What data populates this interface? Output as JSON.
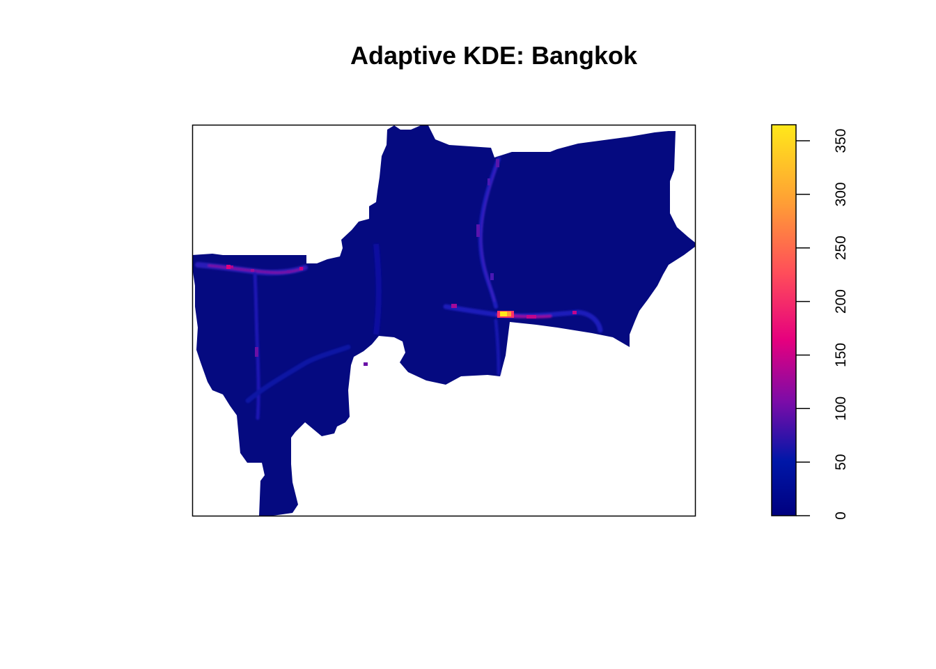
{
  "chart_data": {
    "type": "heatmap",
    "title": "Adaptive KDE: Bangkok",
    "xlabel": "",
    "ylabel": "",
    "axes_shown": false,
    "colorbar": {
      "placement": "right",
      "range": [
        0,
        365
      ],
      "ticks": [
        0,
        50,
        100,
        150,
        200,
        250,
        300,
        350
      ],
      "tick_labels": [
        "0",
        "50",
        "100",
        "150",
        "200",
        "250",
        "300",
        "350"
      ],
      "palette": [
        "#00007F",
        "#0017A8",
        "#7A0CA8",
        "#E6007E",
        "#FF4D5A",
        "#FF9E35",
        "#FFE81A"
      ]
    },
    "background_density": 8,
    "hotspots": [
      {
        "label": "east-west corridor hotspot",
        "value": 365
      },
      {
        "label": "east-west corridor",
        "value": 180
      },
      {
        "label": "northwest corridor hotspot",
        "value": 175
      },
      {
        "label": "northwest corridor",
        "value": 140
      },
      {
        "label": "southwest corridor",
        "value": 90
      },
      {
        "label": "north-south corridor",
        "value": 110
      }
    ]
  }
}
